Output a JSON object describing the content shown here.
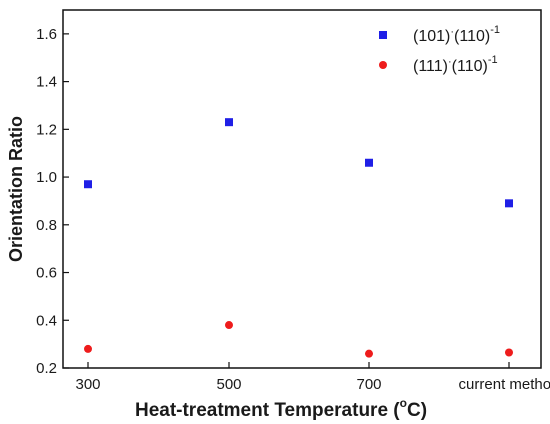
{
  "chart_data": {
    "type": "scatter",
    "categories": [
      "300",
      "500",
      "700",
      "current method"
    ],
    "series": [
      {
        "name": "(101)·(110)⁻¹",
        "name_parts": {
          "a": "(101)",
          "dot": "·",
          "b": "(110)",
          "sup": "-1"
        },
        "marker": "square",
        "color": "#1f1fe6",
        "values": [
          0.97,
          1.23,
          1.06,
          0.89
        ]
      },
      {
        "name": "(111)·(110)⁻¹",
        "name_parts": {
          "a": "(111)",
          "dot": "·",
          "b": "(110)",
          "sup": "-1"
        },
        "marker": "circle",
        "color": "#ee1c1c",
        "values": [
          0.28,
          0.38,
          0.26,
          0.265
        ]
      }
    ],
    "xlabel": "Heat-treatment Temperature (°C)",
    "xlabel_parts": {
      "pre": "Heat-treatment Temperature (",
      "sup": "o",
      "post": "C)"
    },
    "ylabel": "Orientation Ratio",
    "ylim": [
      0.2,
      1.7
    ],
    "yticks": [
      "0.2",
      "0.4",
      "0.6",
      "0.8",
      "1.0",
      "1.2",
      "1.4",
      "1.6"
    ],
    "grid": false,
    "legend_position": "top-right"
  }
}
